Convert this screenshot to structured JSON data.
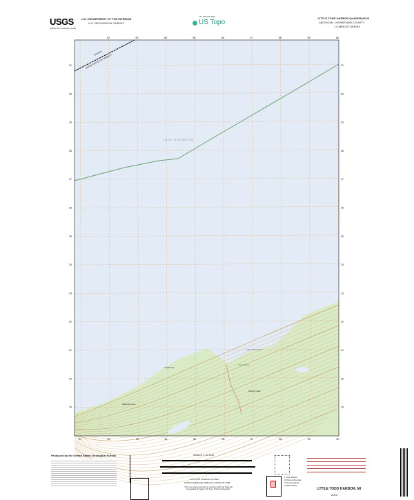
{
  "header": {
    "agency_logo": "USGS",
    "agency_tagline": "science for a changing world",
    "dept": "U.S. DEPARTMENT OF THE INTERIOR",
    "survey": "U.S. GEOLOGICAL SURVEY",
    "center_small": "The National Map",
    "center_logo": "US Topo",
    "quad_title": "LITTLE TODD HARBOR QUADRANGLE",
    "state_county": "MICHIGAN - KEWEENAW COUNTY",
    "series": "7.5-MINUTE SERIES"
  },
  "map": {
    "water_label": "LAKE SUPERIOR",
    "boundary_label_top": "CANADA",
    "boundary_label_bottom": "UNITED STATES OF AMERICA",
    "feature_labels": [
      "Gull Rocks",
      "Little Todd Harbor",
      "Todd Harbor",
      "Hatchet Lake",
      "Rainbow Cove"
    ],
    "top_ticks": [
      "52",
      "53",
      "54",
      "55",
      "56",
      "57",
      "58",
      "59",
      "60"
    ],
    "bottom_ticks": [
      "51",
      "52",
      "53",
      "54",
      "55",
      "56",
      "57",
      "58",
      "59",
      "60"
    ],
    "right_ticks": [
      "31",
      "30",
      "29",
      "28",
      "27",
      "26",
      "25",
      "24",
      "23",
      "22",
      "21",
      "20",
      "19"
    ],
    "colors": {
      "water": "#e3ebf7",
      "land": "#d9ebc6",
      "contour": "#c9a46a",
      "grid": "#e0a060",
      "boundary": "#6aa06a"
    }
  },
  "footer": {
    "producer": "Produced by the United States Geological Survey",
    "scale": "SCALE 1:24 000",
    "contour_note": "CONTOUR INTERVAL 10 FEET",
    "datum_note": "NORTH AMERICAN VERTICAL DATUM OF 1988",
    "standard_note": "This map was produced to conform with the National Geospatial Program US Topo Product Standard.",
    "quad_name": "LITTLE TODD HARBOR, MI",
    "year": "2023",
    "adjoining": [
      "1 Todd Harbor",
      "2 Pocket Mountain",
      "3 Point Hodgson",
      "4 Malone Bay"
    ]
  }
}
